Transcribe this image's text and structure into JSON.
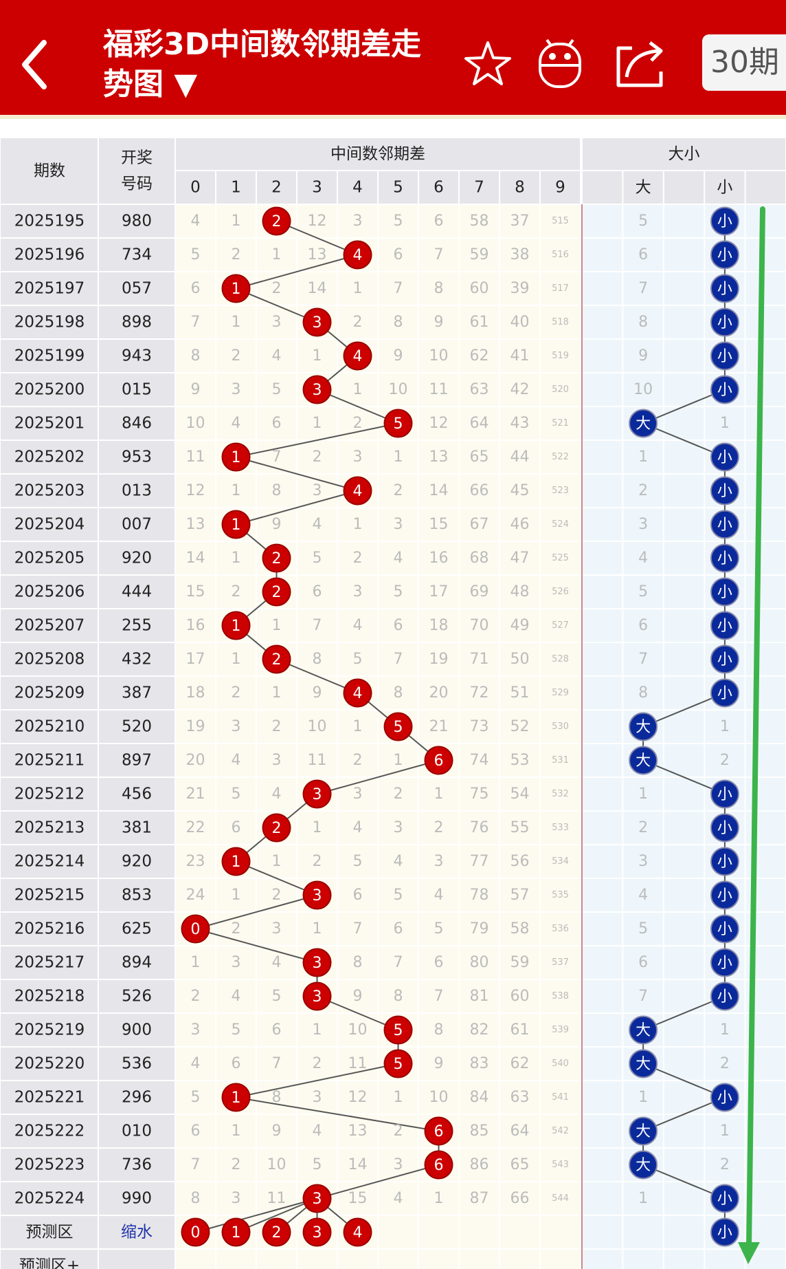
{
  "header": {
    "title": "福彩3D中间数邻期差走势图 ▼",
    "period_button": "30期"
  },
  "table": {
    "col_issue": "期数",
    "col_number": [
      "开奖",
      "号码"
    ],
    "group_diff": "中间数邻期差",
    "group_size": "大小",
    "digits": [
      0,
      1,
      2,
      3,
      4,
      5,
      6,
      7,
      8,
      9
    ],
    "size_cols": [
      "大",
      "小"
    ],
    "rows": [
      {
        "issue": "2025195",
        "number": "980",
        "cells": [
          4,
          1,
          {
            "ball": 2
          },
          12,
          3,
          5,
          6,
          58,
          37,
          515
        ],
        "big": 5,
        "small": "小"
      },
      {
        "issue": "2025196",
        "number": "734",
        "cells": [
          5,
          2,
          1,
          13,
          {
            "ball": 4
          },
          6,
          7,
          59,
          38,
          516
        ],
        "big": 6,
        "small": "小"
      },
      {
        "issue": "2025197",
        "number": "057",
        "cells": [
          6,
          {
            "ball": 1
          },
          2,
          14,
          1,
          7,
          8,
          60,
          39,
          517
        ],
        "big": 7,
        "small": "小"
      },
      {
        "issue": "2025198",
        "number": "898",
        "cells": [
          7,
          1,
          3,
          {
            "ball": 3
          },
          2,
          8,
          9,
          61,
          40,
          518
        ],
        "big": 8,
        "small": "小"
      },
      {
        "issue": "2025199",
        "number": "943",
        "cells": [
          8,
          2,
          4,
          1,
          {
            "ball": 4
          },
          9,
          10,
          62,
          41,
          519
        ],
        "big": 9,
        "small": "小"
      },
      {
        "issue": "2025200",
        "number": "015",
        "cells": [
          9,
          3,
          5,
          {
            "ball": 3
          },
          1,
          10,
          11,
          63,
          42,
          520
        ],
        "big": 10,
        "small": "小"
      },
      {
        "issue": "2025201",
        "number": "846",
        "cells": [
          10,
          4,
          6,
          1,
          2,
          {
            "ball": 5
          },
          12,
          64,
          43,
          521
        ],
        "big": "大",
        "small": 1
      },
      {
        "issue": "2025202",
        "number": "953",
        "cells": [
          11,
          {
            "ball": 1
          },
          7,
          2,
          3,
          1,
          13,
          65,
          44,
          522
        ],
        "big": 1,
        "small": "小"
      },
      {
        "issue": "2025203",
        "number": "013",
        "cells": [
          12,
          1,
          8,
          3,
          {
            "ball": 4
          },
          2,
          14,
          66,
          45,
          523
        ],
        "big": 2,
        "small": "小"
      },
      {
        "issue": "2025204",
        "number": "007",
        "cells": [
          13,
          {
            "ball": 1
          },
          9,
          4,
          1,
          3,
          15,
          67,
          46,
          524
        ],
        "big": 3,
        "small": "小"
      },
      {
        "issue": "2025205",
        "number": "920",
        "cells": [
          14,
          1,
          {
            "ball": 2
          },
          5,
          2,
          4,
          16,
          68,
          47,
          525
        ],
        "big": 4,
        "small": "小"
      },
      {
        "issue": "2025206",
        "number": "444",
        "cells": [
          15,
          2,
          {
            "ball": 2
          },
          6,
          3,
          5,
          17,
          69,
          48,
          526
        ],
        "big": 5,
        "small": "小"
      },
      {
        "issue": "2025207",
        "number": "255",
        "cells": [
          16,
          {
            "ball": 1
          },
          1,
          7,
          4,
          6,
          18,
          70,
          49,
          527
        ],
        "big": 6,
        "small": "小"
      },
      {
        "issue": "2025208",
        "number": "432",
        "cells": [
          17,
          1,
          {
            "ball": 2
          },
          8,
          5,
          7,
          19,
          71,
          50,
          528
        ],
        "big": 7,
        "small": "小"
      },
      {
        "issue": "2025209",
        "number": "387",
        "cells": [
          18,
          2,
          1,
          9,
          {
            "ball": 4
          },
          8,
          20,
          72,
          51,
          529
        ],
        "big": 8,
        "small": "小"
      },
      {
        "issue": "2025210",
        "number": "520",
        "cells": [
          19,
          3,
          2,
          10,
          1,
          {
            "ball": 5
          },
          21,
          73,
          52,
          530
        ],
        "big": "大",
        "small": 1
      },
      {
        "issue": "2025211",
        "number": "897",
        "cells": [
          20,
          4,
          3,
          11,
          2,
          1,
          {
            "ball": 6
          },
          74,
          53,
          531
        ],
        "big": "大",
        "small": 2
      },
      {
        "issue": "2025212",
        "number": "456",
        "cells": [
          21,
          5,
          4,
          {
            "ball": 3
          },
          3,
          2,
          1,
          75,
          54,
          532
        ],
        "big": 1,
        "small": "小"
      },
      {
        "issue": "2025213",
        "number": "381",
        "cells": [
          22,
          6,
          {
            "ball": 2
          },
          1,
          4,
          3,
          2,
          76,
          55,
          533
        ],
        "big": 2,
        "small": "小"
      },
      {
        "issue": "2025214",
        "number": "920",
        "cells": [
          23,
          {
            "ball": 1
          },
          1,
          2,
          5,
          4,
          3,
          77,
          56,
          534
        ],
        "big": 3,
        "small": "小"
      },
      {
        "issue": "2025215",
        "number": "853",
        "cells": [
          24,
          1,
          2,
          {
            "ball": 3
          },
          6,
          5,
          4,
          78,
          57,
          535
        ],
        "big": 4,
        "small": "小"
      },
      {
        "issue": "2025216",
        "number": "625",
        "cells": [
          {
            "ball": 0
          },
          2,
          3,
          1,
          7,
          6,
          5,
          79,
          58,
          536
        ],
        "big": 5,
        "small": "小"
      },
      {
        "issue": "2025217",
        "number": "894",
        "cells": [
          1,
          3,
          4,
          {
            "ball": 3
          },
          8,
          7,
          6,
          80,
          59,
          537
        ],
        "big": 6,
        "small": "小"
      },
      {
        "issue": "2025218",
        "number": "526",
        "cells": [
          2,
          4,
          5,
          {
            "ball": 3
          },
          9,
          8,
          7,
          81,
          60,
          538
        ],
        "big": 7,
        "small": "小"
      },
      {
        "issue": "2025219",
        "number": "900",
        "cells": [
          3,
          5,
          6,
          1,
          10,
          {
            "ball": 5
          },
          8,
          82,
          61,
          539
        ],
        "big": "大",
        "small": 1
      },
      {
        "issue": "2025220",
        "number": "536",
        "cells": [
          4,
          6,
          7,
          2,
          11,
          {
            "ball": 5
          },
          9,
          83,
          62,
          540
        ],
        "big": "大",
        "small": 2
      },
      {
        "issue": "2025221",
        "number": "296",
        "cells": [
          5,
          {
            "ball": 1
          },
          8,
          3,
          12,
          1,
          10,
          84,
          63,
          541
        ],
        "big": 1,
        "small": "小"
      },
      {
        "issue": "2025222",
        "number": "010",
        "cells": [
          6,
          1,
          9,
          4,
          13,
          2,
          {
            "ball": 6
          },
          85,
          64,
          542
        ],
        "big": "大",
        "small": 1
      },
      {
        "issue": "2025223",
        "number": "736",
        "cells": [
          7,
          2,
          10,
          5,
          14,
          3,
          {
            "ball": 6
          },
          86,
          65,
          543
        ],
        "big": "大",
        "small": 2
      },
      {
        "issue": "2025224",
        "number": "990",
        "cells": [
          8,
          3,
          11,
          {
            "ball": 3
          },
          15,
          4,
          1,
          87,
          66,
          544
        ],
        "big": 1,
        "small": "小"
      }
    ],
    "predict": {
      "label": "预测区",
      "note": "缩水",
      "balls": [
        0,
        1,
        2,
        3,
        4
      ],
      "small": "小"
    },
    "extra_row": "预测区+"
  }
}
